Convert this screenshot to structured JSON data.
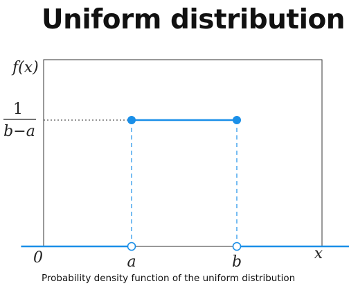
{
  "title": "Uniform distribution",
  "caption": "Probability density function of the uniform distribution",
  "chart_data": {
    "type": "line",
    "ylabel": "f(x)",
    "xlabel": "x",
    "x_ticks": [
      "0",
      "a",
      "b"
    ],
    "y_ticks": [
      {
        "numerator": "1",
        "denominator": "b−a"
      }
    ],
    "x_values": {
      "zero": 0,
      "a": 1,
      "b": 2,
      "xmax": 3.55
    },
    "density": {
      "outside": 0,
      "inside": 1
    },
    "series": [
      {
        "segments": [
          {
            "x": [
              -0.05,
              1
            ],
            "y": [
              0,
              0
            ]
          },
          {
            "x": [
              1,
              2
            ],
            "y": [
              1,
              1
            ]
          },
          {
            "x": [
              2,
              3.55
            ],
            "y": [
              0,
              0
            ]
          }
        ]
      }
    ],
    "points": [
      {
        "x": 1,
        "y": 1,
        "filled": true
      },
      {
        "x": 2,
        "y": 1,
        "filled": true
      },
      {
        "x": 1,
        "y": 0,
        "filled": false
      },
      {
        "x": 2,
        "y": 0,
        "filled": false
      }
    ],
    "colors": {
      "curve": "#1a8fe8",
      "frame": "#333333",
      "guide": "#555555"
    },
    "grid": false
  }
}
